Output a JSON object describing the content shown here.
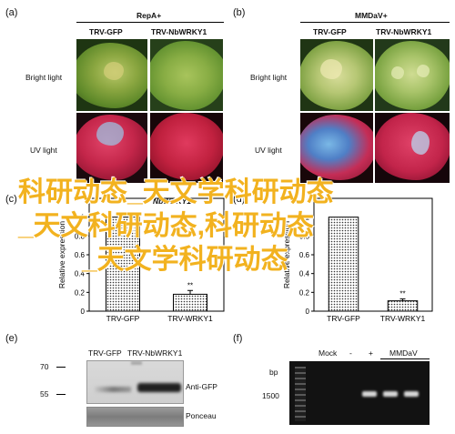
{
  "panels": {
    "a": {
      "letter": "(a)",
      "header": "RepA+",
      "col1": "TRV-GFP",
      "col2": "TRV-NbWRKY1",
      "row1": "Bright light",
      "row2": "UV light"
    },
    "b": {
      "letter": "(b)",
      "header": "MMDaV+",
      "col1": "TRV-GFP",
      "col2": "TRV-NbWRKY1",
      "row1": "Bright light",
      "row2": "UV light"
    },
    "c": {
      "letter": "(c)",
      "header_partial": "NbWRKY1",
      "ylabel": "Relative expression"
    },
    "d": {
      "letter": "(d)",
      "ylabel": "Relative expression"
    },
    "e": {
      "letter": "(e)",
      "col1": "TRV-GFP",
      "col2": "TRV-NbWRKY1",
      "marker_70": "70",
      "marker_55": "55",
      "band1": "Anti-GFP",
      "band2": "Ponceau"
    },
    "f": {
      "letter": "(f)",
      "bp": "bp",
      "bp_1500": "1500",
      "mock": "Mock",
      "minus": "-",
      "plus": "+",
      "mmdav": "MMDaV"
    }
  },
  "overlay": {
    "line1": "科研动态_天文学科研动态",
    "line2": "_天文科研动态,科研动态",
    "line3": "_天文学科研动态"
  },
  "chart_data": [
    {
      "type": "bar",
      "panel": "c",
      "categories": [
        "TRV-GFP",
        "TRV-WRKY1"
      ],
      "values": [
        1.0,
        0.18
      ],
      "errors": [
        0.0,
        0.04
      ],
      "annotations": [
        "",
        "**"
      ],
      "ylim": [
        0,
        1.2
      ],
      "yticks": [
        "0",
        "0.2",
        "0.4",
        "0.6",
        "0.8",
        "1"
      ],
      "ylabel": "Relative expression"
    },
    {
      "type": "bar",
      "panel": "d",
      "categories": [
        "TRV-GFP",
        "TRV-WRKY1"
      ],
      "values": [
        1.0,
        0.11
      ],
      "errors": [
        0.0,
        0.02
      ],
      "annotations": [
        "",
        "**"
      ],
      "ylim": [
        0,
        1.2
      ],
      "yticks": [
        "0",
        "0.2",
        "0.4",
        "0.6",
        "0.8",
        "1"
      ],
      "ylabel": "Relative expression"
    }
  ]
}
